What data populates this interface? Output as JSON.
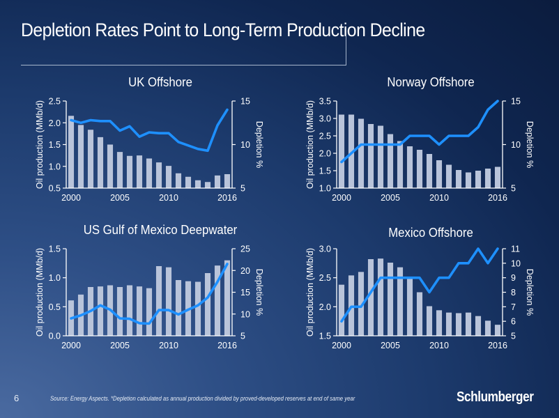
{
  "slide": {
    "title": "Depletion Rates Point to Long-Term Production Decline",
    "page_number": "6",
    "source_note": "Source: Energy Aspects. *Depletion calculated as annual production divided by proved-developed reserves at end of same year",
    "logo_text": "Schlumberger"
  },
  "colors": {
    "bar": "#b9c4da",
    "line": "#1e90ff",
    "axis": "#ffffff",
    "text": "#ffffff"
  },
  "chart_data": [
    {
      "type": "bar+line",
      "title": "UK Offshore",
      "years": [
        2000,
        2001,
        2002,
        2003,
        2004,
        2005,
        2006,
        2007,
        2008,
        2009,
        2010,
        2011,
        2012,
        2013,
        2014,
        2015,
        2016
      ],
      "xticks": [
        "2000",
        "2005",
        "2010",
        "2016"
      ],
      "ylabel": "Oil production (MMb/d)",
      "y2label": "Depletion %",
      "ylim": [
        0.5,
        2.5
      ],
      "yticks": [
        "0.5",
        "1.0",
        "1.5",
        "2.0",
        "2.5"
      ],
      "y2lim": [
        5,
        15
      ],
      "y2ticks": [
        "5",
        "10",
        "15"
      ],
      "series": [
        {
          "name": "Oil production",
          "kind": "bar",
          "axis": "left",
          "values": [
            2.16,
            1.95,
            1.84,
            1.67,
            1.5,
            1.33,
            1.24,
            1.25,
            1.18,
            1.09,
            1.01,
            0.84,
            0.76,
            0.68,
            0.64,
            0.79,
            0.82
          ]
        },
        {
          "name": "Depletion %",
          "kind": "line",
          "axis": "right",
          "values": [
            12.8,
            12.5,
            12.8,
            12.7,
            12.7,
            11.6,
            12.1,
            10.9,
            11.4,
            11.3,
            11.3,
            10.3,
            9.9,
            9.5,
            9.3,
            12.2,
            14.0
          ]
        }
      ]
    },
    {
      "type": "bar+line",
      "title": "Norway Offshore",
      "years": [
        2000,
        2001,
        2002,
        2003,
        2004,
        2005,
        2006,
        2007,
        2008,
        2009,
        2010,
        2011,
        2012,
        2013,
        2014,
        2015,
        2016
      ],
      "xticks": [
        "2000",
        "2005",
        "2010",
        "2016"
      ],
      "ylabel": "Oil production (MMb/d)",
      "y2label": "Depletion %",
      "ylim": [
        1.0,
        3.5
      ],
      "yticks": [
        "1.0",
        "1.5",
        "2.0",
        "2.5",
        "3.0",
        "3.5"
      ],
      "y2lim": [
        5,
        15
      ],
      "y2ticks": [
        "5",
        "10",
        "15"
      ],
      "series": [
        {
          "name": "Oil production",
          "kind": "bar",
          "axis": "left",
          "values": [
            3.11,
            3.11,
            2.99,
            2.84,
            2.79,
            2.55,
            2.35,
            2.2,
            2.1,
            1.98,
            1.8,
            1.67,
            1.52,
            1.45,
            1.5,
            1.56,
            1.61
          ]
        },
        {
          "name": "Depletion %",
          "kind": "line",
          "axis": "right",
          "values": [
            8,
            9,
            10,
            10,
            10,
            10,
            10,
            11,
            11,
            11,
            10,
            11,
            11,
            11,
            12,
            14,
            15
          ]
        }
      ]
    },
    {
      "type": "bar+line",
      "title": "US Gulf of Mexico Deepwater",
      "years": [
        2000,
        2001,
        2002,
        2003,
        2004,
        2005,
        2006,
        2007,
        2008,
        2009,
        2010,
        2011,
        2012,
        2013,
        2014,
        2015,
        2016
      ],
      "xticks": [
        "2000",
        "2005",
        "2010",
        "2016"
      ],
      "ylabel": "Oil production (MMb/d)",
      "y2label": "Depletion %",
      "ylim": [
        0.0,
        1.5
      ],
      "yticks": [
        "0.0",
        "0.5",
        "1.0",
        "1.5"
      ],
      "y2lim": [
        5,
        25
      ],
      "y2ticks": [
        "5",
        "10",
        "15",
        "20",
        "25"
      ],
      "series": [
        {
          "name": "Oil production",
          "kind": "bar",
          "axis": "left",
          "values": [
            0.61,
            0.71,
            0.84,
            0.85,
            0.87,
            0.84,
            0.87,
            0.85,
            0.82,
            1.2,
            1.18,
            0.96,
            0.94,
            0.93,
            1.08,
            1.21,
            1.3
          ]
        },
        {
          "name": "Depletion %",
          "kind": "line",
          "axis": "right",
          "values": [
            9.0,
            9.7,
            10.7,
            12.0,
            11.0,
            9.0,
            8.9,
            7.9,
            7.8,
            10.9,
            10.9,
            9.9,
            11.0,
            12.0,
            13.8,
            17.4,
            21.5
          ]
        }
      ]
    },
    {
      "type": "bar+line",
      "title": "Mexico Offshore",
      "years": [
        2000,
        2001,
        2002,
        2003,
        2004,
        2005,
        2006,
        2007,
        2008,
        2009,
        2010,
        2011,
        2012,
        2013,
        2014,
        2015,
        2016
      ],
      "xticks": [
        "2000",
        "2005",
        "2010",
        "2016"
      ],
      "ylabel": "Oil production (MMb/d)",
      "y2label": "Depletion %",
      "ylim": [
        1.5,
        3.0
      ],
      "yticks": [
        "1.5",
        "2.0",
        "2.5",
        "3.0"
      ],
      "y2lim": [
        5,
        11
      ],
      "y2ticks": [
        "5",
        "6",
        "7",
        "8",
        "9",
        "10",
        "11"
      ],
      "series": [
        {
          "name": "Oil production",
          "kind": "bar",
          "axis": "left",
          "values": [
            2.38,
            2.54,
            2.6,
            2.82,
            2.83,
            2.76,
            2.68,
            2.49,
            2.25,
            2.01,
            1.94,
            1.9,
            1.89,
            1.9,
            1.84,
            1.76,
            1.69
          ]
        },
        {
          "name": "Depletion %",
          "kind": "line",
          "axis": "right",
          "values": [
            6,
            7,
            7,
            8,
            9,
            9,
            9,
            9,
            9,
            8,
            9,
            9,
            10,
            10,
            11,
            10,
            11
          ]
        }
      ]
    }
  ]
}
